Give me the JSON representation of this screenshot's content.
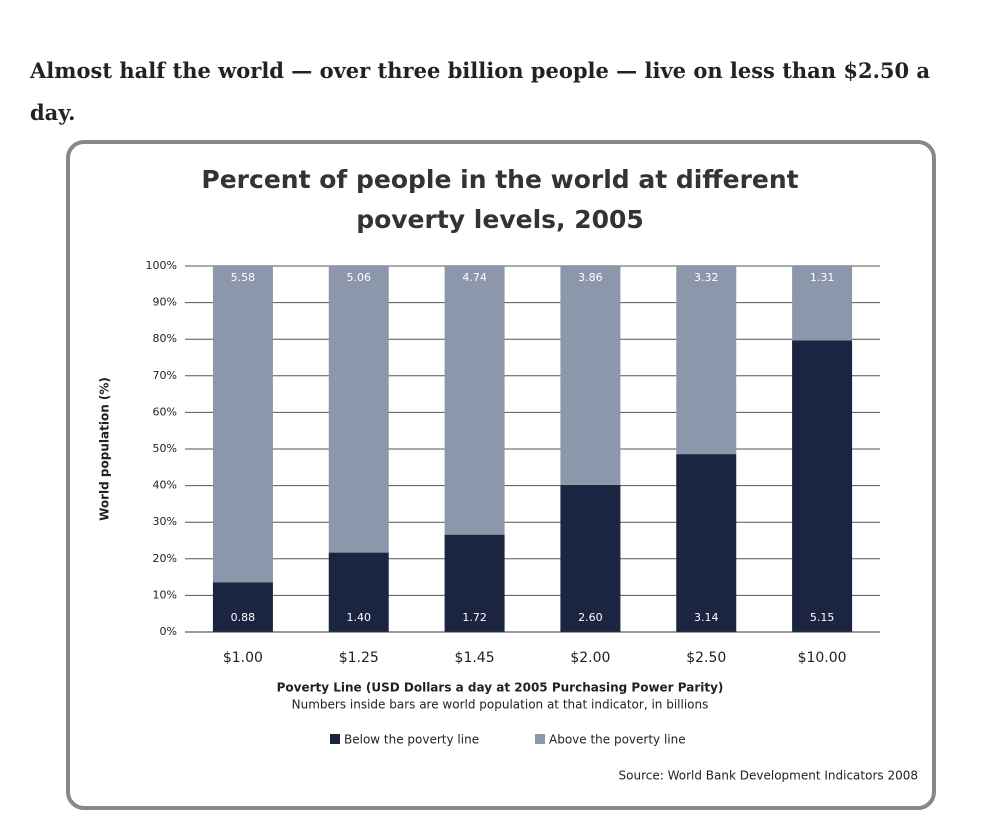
{
  "intro": "Almost half the world — over three billion people — live on less than $2.50 a day.",
  "chart_data": {
    "type": "stacked_bar",
    "title": "Percent of people in the world at different poverty levels, 2005",
    "x_label": "Poverty Line (USD Dollars a day at 2005 Purchasing Power Parity)",
    "note": "Numbers inside bars are world population at that indicator, in billions",
    "y_label": "World population (%)",
    "source": "Source: World Bank Development Indicators 2008",
    "categories": [
      "$1.00",
      "$1.25",
      "$1.45",
      "$2.00",
      "$2.50",
      "$10.00"
    ],
    "series": [
      {
        "name": "Below the poverty line",
        "color": "#1b2440",
        "values": [
          13.6,
          21.7,
          26.6,
          40.2,
          48.6,
          79.7
        ],
        "population": [
          "0.88",
          "1.40",
          "1.72",
          "2.60",
          "3.14",
          "5.15"
        ]
      },
      {
        "name": "Above the poverty line",
        "color": "#8d97ab",
        "values": [
          86.4,
          78.3,
          73.4,
          59.8,
          51.4,
          20.3
        ],
        "population": [
          "5.58",
          "5.06",
          "4.74",
          "3.86",
          "3.32",
          "1.31"
        ]
      }
    ],
    "ylim": [
      0,
      100
    ],
    "yticks": [
      {
        "value": 0,
        "label": "0%"
      },
      {
        "value": 10,
        "label": "10%"
      },
      {
        "value": 20,
        "label": "20%"
      },
      {
        "value": 30,
        "label": "30%"
      },
      {
        "value": 40,
        "label": "40%"
      },
      {
        "value": 50,
        "label": "50%"
      },
      {
        "value": 60,
        "label": "60%"
      },
      {
        "value": 70,
        "label": "70%"
      },
      {
        "value": 80,
        "label": "80%"
      },
      {
        "value": 90,
        "label": "90%"
      },
      {
        "value": 100,
        "label": "100%"
      }
    ],
    "grid": true,
    "legend": "bottom"
  }
}
